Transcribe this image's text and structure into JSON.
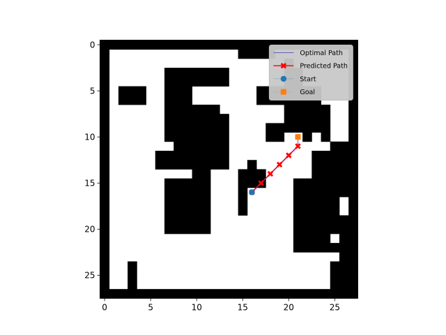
{
  "chart_data": {
    "type": "heatmap",
    "subtype": "occupancy-grid-path-plot",
    "title": "",
    "xlabel": "",
    "ylabel": "",
    "xlim": [
      -0.5,
      27.5
    ],
    "ylim": [
      27.5,
      -0.5
    ],
    "xticks": [
      0,
      5,
      10,
      15,
      20,
      25
    ],
    "yticks": [
      0,
      5,
      10,
      15,
      20,
      25
    ],
    "xtick_labels": [
      "0",
      "5",
      "10",
      "15",
      "20",
      "25"
    ],
    "ytick_labels": [
      "0",
      "5",
      "10",
      "15",
      "20",
      "25"
    ],
    "grid_size": [
      28,
      28
    ],
    "colors": {
      "obstacle": "#000000",
      "free": "#ffffff"
    },
    "grid": [
      "1111111111111111111111111111",
      "1000000000000001111000000001",
      "1000000000000000000010000001",
      "1000000111111100000011000001",
      "1000000111111100000011000001",
      "1011100111000000011111110001",
      "1011100111000000011111110001",
      "1000000111111000000011111001",
      "1000000111111100000011111001",
      "1000000111111100001111111001",
      "1000000111111100001100101001",
      "1000000011111100000000000111",
      "1000001111111100000000011111",
      "1000001111111100100000011111",
      "1000000000110001110000011111",
      "1000000111110001110001111111",
      "1000000111110001000001111111",
      "1000000111110001000001111101",
      "1000000111110001000001111101",
      "1000000111110000000001111111",
      "1000000111110000000001111111",
      "1000000000000000000001111011",
      "1000000000000000000001111111",
      "1000000000000000000000000011",
      "1001000000000000000000000111",
      "1001000000000000000000000111",
      "1001000000000000000000000111",
      "1111111111111111111111111111"
    ],
    "series": [
      {
        "name": "Optimal Path",
        "color": "#3b3bb5",
        "marker": "none",
        "x": [
          16,
          17,
          18,
          19,
          20,
          21,
          21
        ],
        "y": [
          16,
          15,
          14,
          13,
          12,
          11,
          10
        ]
      },
      {
        "name": "Predicted Path",
        "color": "#ff0000",
        "marker": "x",
        "x": [
          16,
          17,
          18,
          19,
          20,
          21
        ],
        "y": [
          16,
          15,
          14,
          13,
          12,
          11
        ]
      },
      {
        "name": "Start",
        "color": "#1f77b4",
        "marker": "circle",
        "x": [
          16
        ],
        "y": [
          16
        ]
      },
      {
        "name": "Goal",
        "color": "#ff7f0e",
        "marker": "square",
        "x": [
          21
        ],
        "y": [
          10
        ]
      }
    ],
    "legend": {
      "placement": "upper-right",
      "entries": [
        "Optimal Path",
        "Predicted Path",
        "Start",
        "Goal"
      ]
    }
  }
}
